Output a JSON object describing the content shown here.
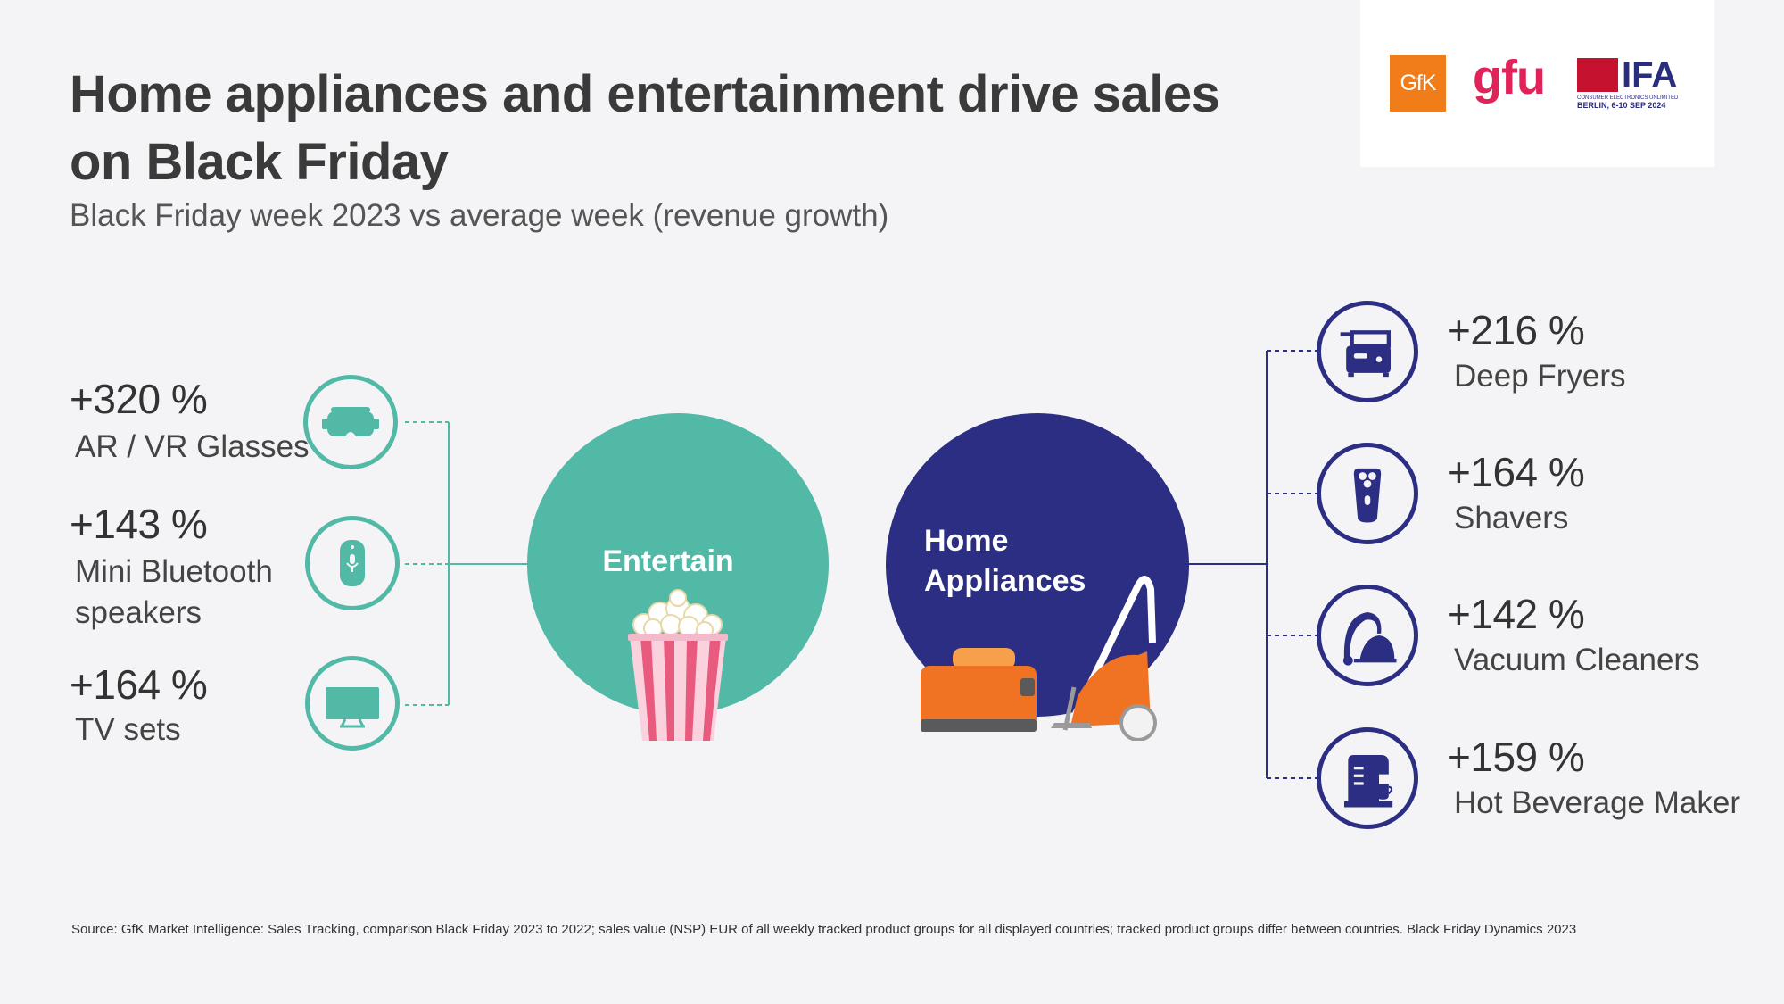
{
  "header": {
    "title": "Home appliances and entertainment drive sales on Black Friday",
    "subtitle": "Black Friday week 2023 vs average week (revenue growth)"
  },
  "logos": {
    "gfk": "GfK",
    "gfu": "gfu",
    "ifa": "IFA",
    "ifa_tagline": "CONSUMER ELECTRONICS UNLIMITED",
    "ifa_date": "BERLIN, 6-10 SEP 2024"
  },
  "entertainment": {
    "label": "Entertain",
    "color": "#52b9a6",
    "items": [
      {
        "value": "+320 %",
        "label": "AR / VR Glasses",
        "icon": "vr-glasses-icon"
      },
      {
        "value": "+143 %",
        "label": "Mini Bluetooth speakers",
        "icon": "bluetooth-speaker-icon"
      },
      {
        "value": "+164 %",
        "label": "TV sets",
        "icon": "tv-icon"
      }
    ]
  },
  "home_appliances": {
    "label": "Home Appliances",
    "color": "#2b2e82",
    "items": [
      {
        "value": "+216 %",
        "label": "Deep Fryers",
        "icon": "deep-fryer-icon"
      },
      {
        "value": "+164 %",
        "label": "Shavers",
        "icon": "shaver-icon"
      },
      {
        "value": "+142 %",
        "label": "Vacuum Cleaners",
        "icon": "vacuum-cleaner-icon"
      },
      {
        "value": "+159 %",
        "label": "Hot Beverage Maker",
        "icon": "coffee-maker-icon"
      }
    ]
  },
  "footer": {
    "source": "Source: GfK Market Intelligence: Sales Tracking, comparison Black Friday 2023 to 2022; sales value (NSP) EUR of all weekly tracked product groups for all displayed countries; tracked product groups differ between countries. Black Friday Dynamics 2023"
  }
}
